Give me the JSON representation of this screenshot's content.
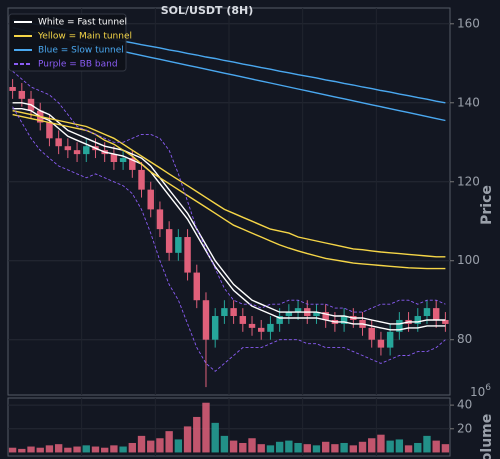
{
  "chart_data": {
    "type": "candlestick",
    "title": "SOL/USDT (8H)",
    "y_axis_label": "Price",
    "volume_axis_label": "Volume",
    "volume_offset_base": "10",
    "volume_offset_exponent": "6",
    "ylim": [
      66,
      164
    ],
    "yticks": [
      80,
      100,
      120,
      140,
      160
    ],
    "volume_ylim": [
      -3,
      46
    ],
    "volume_yticks": [
      20,
      40
    ],
    "grid": true,
    "legend": "upper left",
    "up_color": "#26a69a",
    "down_color": "#e0607a",
    "open": [
      144,
      143,
      141,
      138,
      135,
      131,
      129,
      128,
      127,
      129,
      128,
      127,
      125,
      126,
      123,
      118,
      113,
      108,
      102,
      106,
      97,
      90,
      80,
      86,
      88,
      86,
      84,
      83,
      82,
      84,
      86,
      87,
      88,
      86,
      87,
      85,
      84,
      86,
      85,
      83,
      80,
      78,
      82,
      85,
      84,
      86,
      88,
      85
    ],
    "high": [
      146,
      145,
      143,
      140,
      137,
      133,
      131,
      130,
      131,
      131,
      130,
      129,
      128,
      128,
      125,
      120,
      115,
      110,
      108,
      108,
      99,
      92,
      88,
      90,
      90,
      88,
      86,
      85,
      86,
      88,
      89,
      90,
      90,
      89,
      89,
      87,
      88,
      88,
      87,
      85,
      82,
      84,
      87,
      87,
      88,
      90,
      90,
      87
    ],
    "low": [
      141,
      139,
      136,
      133,
      129,
      127,
      126,
      125,
      125,
      126,
      125,
      123,
      123,
      121,
      116,
      111,
      106,
      100,
      100,
      95,
      88,
      68,
      78,
      84,
      84,
      82,
      81,
      80,
      80,
      82,
      84,
      85,
      84,
      84,
      83,
      82,
      82,
      83,
      81,
      78,
      76,
      76,
      80,
      82,
      82,
      84,
      83,
      82
    ],
    "close": [
      143,
      141,
      138,
      135,
      131,
      129,
      128,
      127,
      129,
      128,
      127,
      125,
      126,
      123,
      118,
      113,
      108,
      102,
      106,
      97,
      90,
      80,
      86,
      88,
      86,
      84,
      83,
      82,
      84,
      86,
      87,
      88,
      86,
      87,
      85,
      84,
      86,
      85,
      83,
      80,
      78,
      82,
      85,
      84,
      86,
      88,
      85,
      84
    ],
    "volume": [
      4,
      3,
      5,
      4,
      6,
      7,
      4,
      5,
      6,
      5,
      4,
      6,
      5,
      8,
      14,
      10,
      12,
      18,
      11,
      22,
      30,
      42,
      25,
      14,
      10,
      8,
      12,
      7,
      6,
      9,
      10,
      8,
      7,
      6,
      9,
      7,
      8,
      6,
      9,
      12,
      15,
      10,
      11,
      6,
      8,
      14,
      10,
      7
    ],
    "series": [
      {
        "name": "White = Fast tunnel",
        "color": "#ffffff",
        "dashed": false,
        "lines": [
          [
            140,
            140,
            139.5,
            138,
            137,
            135,
            133,
            132,
            131,
            130,
            129,
            128.5,
            128,
            127,
            126,
            124,
            121,
            118,
            115,
            112,
            108,
            104,
            100,
            97,
            94,
            92,
            90,
            89,
            88,
            87,
            87,
            87,
            87,
            87,
            86.5,
            86,
            86,
            85.5,
            85.5,
            85,
            84.5,
            84,
            84,
            84.5,
            84.5,
            85,
            85,
            85
          ],
          [
            138.5,
            138.5,
            138,
            136.5,
            135.5,
            133.5,
            131.5,
            130.5,
            129.5,
            128.5,
            127.5,
            127,
            126.5,
            125.5,
            124.5,
            122.5,
            119.5,
            116.5,
            113.5,
            110.5,
            106.5,
            102.5,
            98.5,
            95.5,
            92.5,
            90.5,
            88.5,
            87.5,
            86.5,
            85.5,
            85.5,
            85.5,
            85.5,
            85.5,
            85,
            84.5,
            84.5,
            84,
            84,
            83.5,
            83,
            82.5,
            82.5,
            83,
            83,
            83.5,
            83.5,
            83.5
          ]
        ]
      },
      {
        "name": "Yellow = Main tunnel",
        "color": "#f5d547",
        "dashed": false,
        "lines": [
          [
            138,
            137.5,
            137,
            136.5,
            136,
            135.5,
            135,
            134.5,
            134,
            133,
            132,
            131,
            129.5,
            128,
            126.5,
            125,
            123.5,
            122,
            120.5,
            119,
            117.5,
            116,
            114.5,
            113,
            112,
            111,
            110,
            109,
            108,
            107.5,
            107,
            106,
            105.5,
            105,
            104.5,
            104,
            103.5,
            103,
            102.8,
            102.5,
            102.2,
            102,
            101.8,
            101.6,
            101.4,
            101.2,
            101,
            101
          ],
          [
            137,
            136.5,
            136,
            135.5,
            135,
            134.5,
            134,
            133.5,
            133,
            132,
            130.5,
            129.5,
            128,
            126.5,
            124.5,
            122.5,
            121,
            119.5,
            118,
            116.5,
            115,
            113.5,
            112,
            110.5,
            109,
            108,
            107,
            106,
            105,
            104,
            103.2,
            102.5,
            101.8,
            101.2,
            100.6,
            100.2,
            99.8,
            99.4,
            99.2,
            99,
            98.8,
            98.6,
            98.4,
            98.2,
            98.1,
            98,
            98,
            98
          ]
        ]
      },
      {
        "name": "Blue = Slow tunnel",
        "color": "#4aa8f0",
        "dashed": false,
        "lines": [
          [
            161,
            160.6,
            160.1,
            159.7,
            159.2,
            158.8,
            158.3,
            157.9,
            157.4,
            157,
            156.5,
            156.1,
            155.6,
            155.2,
            154.7,
            154.3,
            153.9,
            153.4,
            153,
            152.5,
            152.1,
            151.6,
            151.2,
            150.7,
            150.3,
            149.8,
            149.4,
            148.9,
            148.5,
            148,
            147.6,
            147.1,
            146.7,
            146.3,
            145.8,
            145.4,
            144.9,
            144.5,
            144,
            143.6,
            143.1,
            142.7,
            142.2,
            141.8,
            141.3,
            140.9,
            140.4,
            140
          ],
          [
            159,
            158.5,
            158,
            157.5,
            157,
            156.5,
            156,
            155.5,
            155,
            154.5,
            154,
            153.5,
            153,
            152.5,
            152,
            151.5,
            151,
            150.5,
            150,
            149.5,
            149,
            148.5,
            148,
            147.5,
            147,
            146.5,
            146,
            145.5,
            145,
            144.5,
            144,
            143.5,
            143,
            142.5,
            142,
            141.5,
            141,
            140.5,
            140,
            139.5,
            139,
            138.5,
            138,
            137.5,
            137,
            136.5,
            136,
            135.5
          ]
        ]
      },
      {
        "name": "Purple = BB band",
        "color": "#8a5cf5",
        "dashed": true,
        "lines": [
          [
            148,
            146,
            144,
            143,
            142,
            140,
            137,
            134,
            133,
            132,
            131,
            130,
            130,
            131,
            132,
            132,
            131,
            128,
            122,
            115,
            108,
            103,
            98,
            93,
            90,
            89,
            89,
            88,
            89,
            89,
            90,
            90,
            89,
            89,
            89,
            88,
            88,
            87,
            87,
            88,
            89,
            89,
            90,
            90,
            89,
            90,
            90,
            89
          ],
          [
            139,
            135,
            131,
            128,
            126,
            124,
            123,
            122,
            121,
            122,
            121,
            120,
            119,
            117,
            113,
            107,
            100,
            94,
            90,
            84,
            78,
            74,
            72,
            74,
            76,
            78,
            78,
            78,
            79,
            80,
            80,
            80,
            79,
            79,
            78,
            78,
            78,
            77,
            76,
            75,
            74,
            75,
            76,
            76,
            77,
            77,
            78,
            80
          ]
        ]
      }
    ]
  }
}
